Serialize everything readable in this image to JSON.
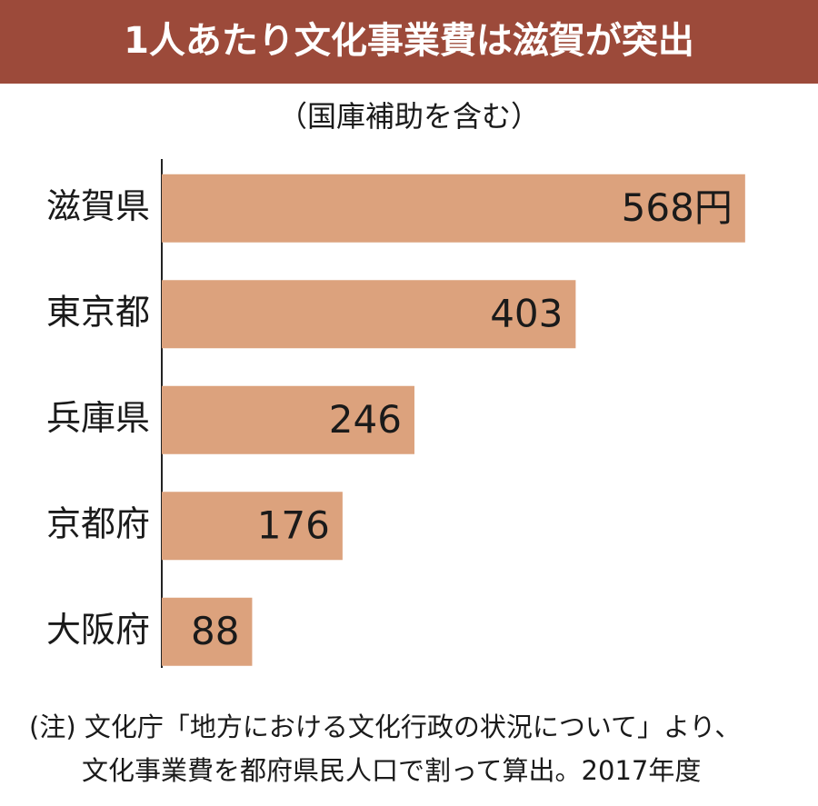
{
  "chart_data": {
    "type": "bar",
    "orientation": "horizontal",
    "title": "1人あたり文化事業費は滋賀が突出",
    "subtitle": "（国庫補助を含む）",
    "categories": [
      "滋賀県",
      "東京都",
      "兵庫県",
      "京都府",
      "大阪府"
    ],
    "values": [
      568,
      403,
      246,
      176,
      88
    ],
    "value_labels": [
      "568円",
      "403",
      "246",
      "176",
      "88"
    ],
    "color": "#dca27d",
    "notes": [
      "(注) 文化庁「地方における文化行政の状況について」より、",
      "文化事業費を都府県民人口で割って算出。2017年度"
    ]
  }
}
